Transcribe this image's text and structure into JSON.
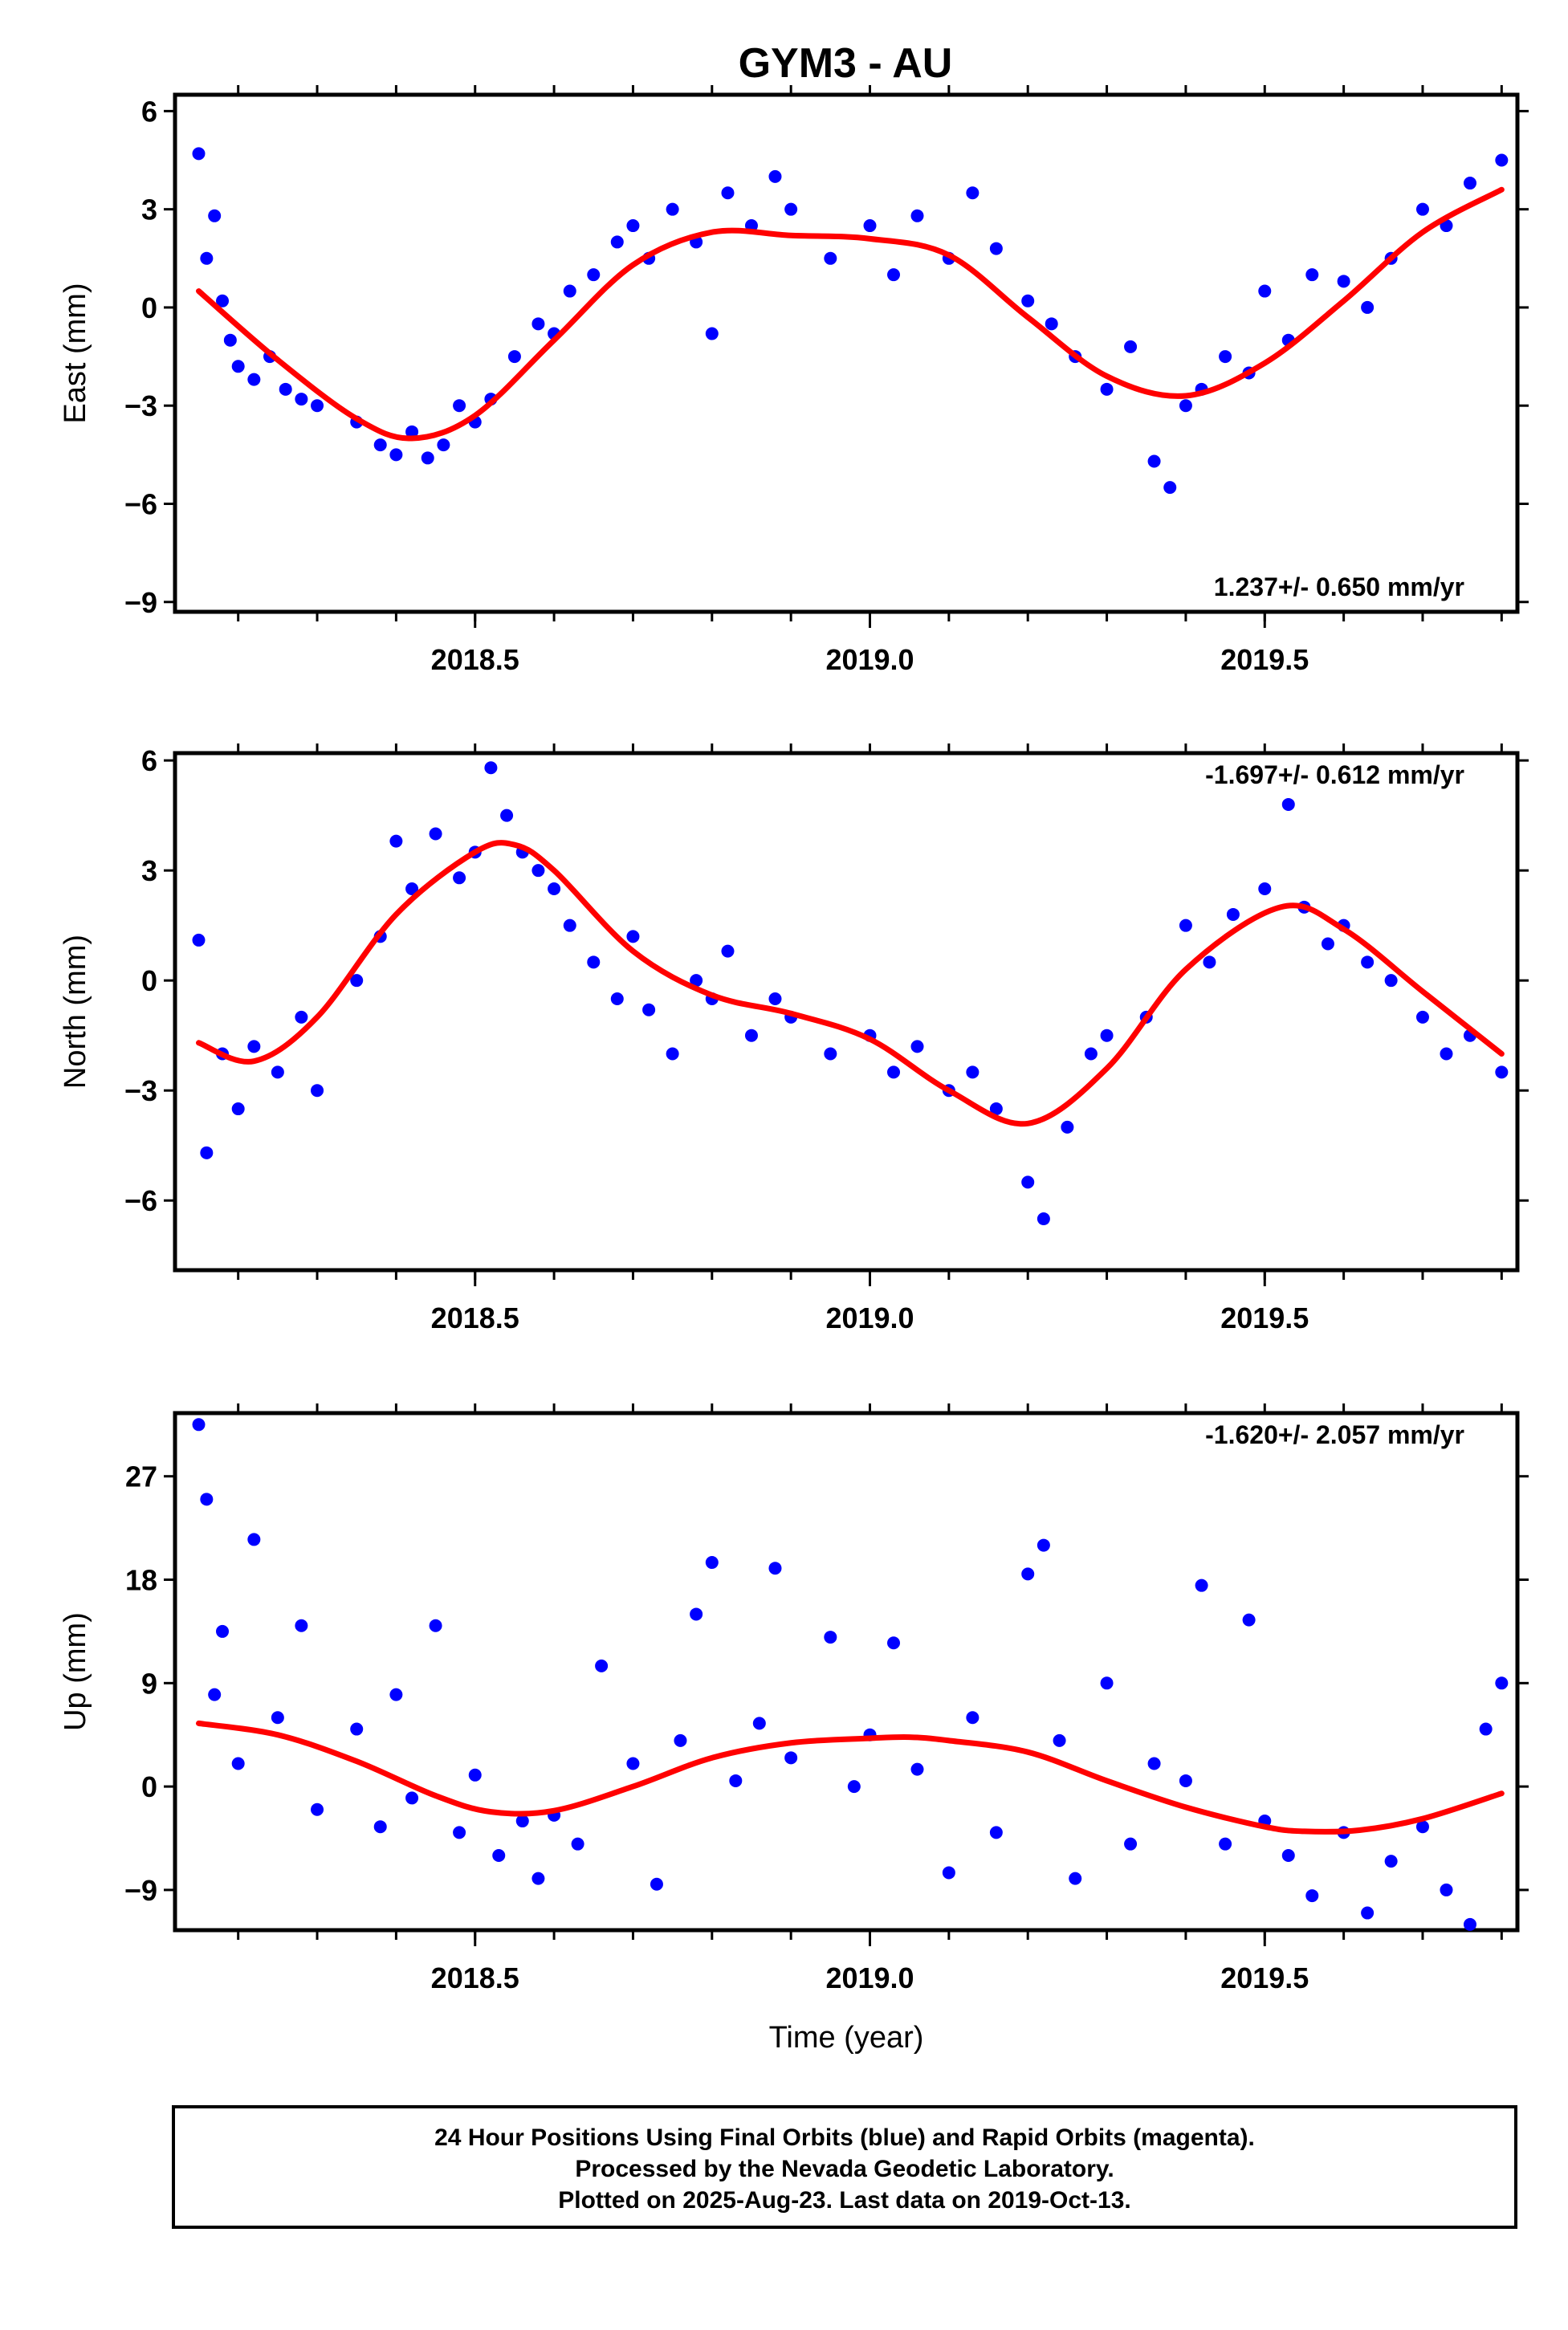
{
  "page": {
    "title": "GYM3 - AU"
  },
  "footer": {
    "line1": "24 Hour Positions Using Final Orbits (blue) and Rapid Orbits (magenta).",
    "line2": "Processed by the Nevada Geodetic Laboratory.",
    "line3": "Plotted on 2025-Aug-23. Last data on 2019-Oct-13."
  },
  "colors": {
    "points": "#0000ff",
    "fit": "#ff0000",
    "frame": "#000000"
  },
  "chart_data": [
    {
      "type": "scatter",
      "name": "east",
      "title": "GYM3 - AU",
      "ylabel": "East (mm)",
      "xlabel": "",
      "xlim": [
        2018.12,
        2019.82
      ],
      "ylim": [
        -9.3,
        6.5
      ],
      "yticks": [
        -9,
        -6,
        -3,
        0,
        3,
        6
      ],
      "xticks": [
        2018.5,
        2019.0,
        2019.5
      ],
      "rate_label": "1.237+/- 0.650 mm/yr",
      "fit": {
        "x": [
          2018.15,
          2018.25,
          2018.35,
          2018.42,
          2018.5,
          2018.6,
          2018.7,
          2018.8,
          2018.9,
          2019.0,
          2019.1,
          2019.2,
          2019.3,
          2019.4,
          2019.5,
          2019.6,
          2019.7,
          2019.8
        ],
        "y": [
          0.5,
          -1.6,
          -3.4,
          -4.0,
          -3.3,
          -1.0,
          1.3,
          2.3,
          2.2,
          2.1,
          1.6,
          -0.3,
          -2.1,
          -2.7,
          -1.7,
          0.2,
          2.3,
          3.6
        ]
      },
      "points": {
        "x": [
          2018.15,
          2018.16,
          2018.17,
          2018.18,
          2018.19,
          2018.2,
          2018.22,
          2018.24,
          2018.26,
          2018.28,
          2018.3,
          2018.35,
          2018.38,
          2018.4,
          2018.42,
          2018.44,
          2018.46,
          2018.48,
          2018.5,
          2018.52,
          2018.55,
          2018.58,
          2018.6,
          2018.62,
          2018.65,
          2018.68,
          2018.7,
          2018.72,
          2018.75,
          2018.78,
          2018.8,
          2018.82,
          2018.85,
          2018.88,
          2018.9,
          2018.95,
          2019.0,
          2019.03,
          2019.06,
          2019.1,
          2019.13,
          2019.16,
          2019.2,
          2019.23,
          2019.26,
          2019.3,
          2019.33,
          2019.36,
          2019.38,
          2019.4,
          2019.42,
          2019.45,
          2019.48,
          2019.5,
          2019.53,
          2019.56,
          2019.6,
          2019.63,
          2019.66,
          2019.7,
          2019.73,
          2019.76,
          2019.8
        ],
        "y": [
          4.7,
          1.5,
          2.8,
          0.2,
          -1.0,
          -1.8,
          -2.2,
          -1.5,
          -2.5,
          -2.8,
          -3.0,
          -3.5,
          -4.2,
          -4.5,
          -3.8,
          -4.6,
          -4.2,
          -3.0,
          -3.5,
          -2.8,
          -1.5,
          -0.5,
          -0.8,
          0.5,
          1.0,
          2.0,
          2.5,
          1.5,
          3.0,
          2.0,
          -0.8,
          3.5,
          2.5,
          4.0,
          3.0,
          1.5,
          2.5,
          1.0,
          2.8,
          1.5,
          3.5,
          1.8,
          0.2,
          -0.5,
          -1.5,
          -2.5,
          -1.2,
          -4.7,
          -5.5,
          -3.0,
          -2.5,
          -1.5,
          -2.0,
          0.5,
          -1.0,
          1.0,
          0.8,
          0.0,
          1.5,
          3.0,
          2.5,
          3.8,
          4.5
        ]
      }
    },
    {
      "type": "scatter",
      "name": "north",
      "ylabel": "North (mm)",
      "xlabel": "",
      "xlim": [
        2018.12,
        2019.82
      ],
      "ylim": [
        -7.9,
        6.2
      ],
      "yticks": [
        -6,
        -3,
        0,
        3,
        6
      ],
      "xticks": [
        2018.5,
        2019.0,
        2019.5
      ],
      "rate_label": "-1.697+/- 0.612 mm/yr",
      "fit": {
        "x": [
          2018.15,
          2018.22,
          2018.3,
          2018.4,
          2018.5,
          2018.55,
          2018.6,
          2018.7,
          2018.8,
          2018.9,
          2019.0,
          2019.1,
          2019.2,
          2019.3,
          2019.4,
          2019.52,
          2019.6,
          2019.7,
          2019.8
        ],
        "y": [
          -1.7,
          -2.2,
          -1.0,
          1.8,
          3.5,
          3.7,
          3.0,
          0.8,
          -0.4,
          -0.9,
          -1.6,
          -3.0,
          -3.9,
          -2.4,
          0.3,
          2.0,
          1.4,
          -0.3,
          -2.0
        ]
      },
      "points": {
        "x": [
          2018.15,
          2018.16,
          2018.18,
          2018.2,
          2018.22,
          2018.25,
          2018.28,
          2018.3,
          2018.35,
          2018.38,
          2018.4,
          2018.42,
          2018.45,
          2018.48,
          2018.5,
          2018.52,
          2018.54,
          2018.56,
          2018.58,
          2018.6,
          2018.62,
          2018.65,
          2018.68,
          2018.7,
          2018.72,
          2018.75,
          2018.78,
          2018.8,
          2018.82,
          2018.85,
          2018.88,
          2018.9,
          2018.95,
          2019.0,
          2019.03,
          2019.06,
          2019.1,
          2019.13,
          2019.16,
          2019.2,
          2019.22,
          2019.25,
          2019.28,
          2019.3,
          2019.35,
          2019.4,
          2019.43,
          2019.46,
          2019.5,
          2019.53,
          2019.55,
          2019.58,
          2019.6,
          2019.63,
          2019.66,
          2019.7,
          2019.73,
          2019.76,
          2019.8
        ],
        "y": [
          1.1,
          -4.7,
          -2.0,
          -3.5,
          -1.8,
          -2.5,
          -1.0,
          -3.0,
          0.0,
          1.2,
          3.8,
          2.5,
          4.0,
          2.8,
          3.5,
          5.8,
          4.5,
          3.5,
          3.0,
          2.5,
          1.5,
          0.5,
          -0.5,
          1.2,
          -0.8,
          -2.0,
          0.0,
          -0.5,
          0.8,
          -1.5,
          -0.5,
          -1.0,
          -2.0,
          -1.5,
          -2.5,
          -1.8,
          -3.0,
          -2.5,
          -3.5,
          -5.5,
          -6.5,
          -4.0,
          -2.0,
          -1.5,
          -1.0,
          1.5,
          0.5,
          1.8,
          2.5,
          4.8,
          2.0,
          1.0,
          1.5,
          0.5,
          0.0,
          -1.0,
          -2.0,
          -1.5,
          -2.5
        ]
      }
    },
    {
      "type": "scatter",
      "name": "up",
      "ylabel": "Up (mm)",
      "xlabel": "Time (year)",
      "xlim": [
        2018.12,
        2019.82
      ],
      "ylim": [
        -12.5,
        32.5
      ],
      "yticks": [
        -9,
        0,
        9,
        18,
        27
      ],
      "xticks": [
        2018.5,
        2019.0,
        2019.5
      ],
      "rate_label": "-1.620+/- 2.057 mm/yr",
      "fit": {
        "x": [
          2018.15,
          2018.25,
          2018.35,
          2018.45,
          2018.52,
          2018.6,
          2018.7,
          2018.8,
          2018.9,
          2019.0,
          2019.05,
          2019.1,
          2019.2,
          2019.3,
          2019.4,
          2019.5,
          2019.55,
          2019.62,
          2019.7,
          2019.8
        ],
        "y": [
          5.5,
          4.5,
          2.2,
          -0.8,
          -2.2,
          -2.1,
          0.0,
          2.5,
          3.8,
          4.2,
          4.3,
          4.0,
          3.0,
          0.5,
          -1.8,
          -3.5,
          -3.9,
          -3.8,
          -2.8,
          -0.6
        ]
      },
      "points": {
        "x": [
          2018.15,
          2018.16,
          2018.17,
          2018.18,
          2018.2,
          2018.22,
          2018.25,
          2018.28,
          2018.3,
          2018.35,
          2018.38,
          2018.4,
          2018.42,
          2018.45,
          2018.48,
          2018.5,
          2018.53,
          2018.56,
          2018.58,
          2018.6,
          2018.63,
          2018.66,
          2018.7,
          2018.73,
          2018.76,
          2018.78,
          2018.8,
          2018.83,
          2018.86,
          2018.88,
          2018.9,
          2018.95,
          2018.98,
          2019.0,
          2019.03,
          2019.06,
          2019.1,
          2019.13,
          2019.16,
          2019.2,
          2019.22,
          2019.24,
          2019.26,
          2019.3,
          2019.33,
          2019.36,
          2019.4,
          2019.42,
          2019.45,
          2019.48,
          2019.5,
          2019.53,
          2019.56,
          2019.6,
          2019.63,
          2019.66,
          2019.7,
          2019.73,
          2019.76,
          2019.78,
          2019.8
        ],
        "y": [
          31.5,
          25.0,
          8.0,
          13.5,
          2.0,
          21.5,
          6.0,
          14.0,
          -2.0,
          5.0,
          -3.5,
          8.0,
          -1.0,
          14.0,
          -4.0,
          1.0,
          -6.0,
          -3.0,
          -8.0,
          -2.5,
          -5.0,
          10.5,
          2.0,
          -8.5,
          4.0,
          15.0,
          19.5,
          0.5,
          5.5,
          19.0,
          2.5,
          13.0,
          0.0,
          4.5,
          12.5,
          1.5,
          -7.5,
          6.0,
          -4.0,
          18.5,
          21.0,
          4.0,
          -8.0,
          9.0,
          -5.0,
          2.0,
          0.5,
          17.5,
          -5.0,
          14.5,
          -3.0,
          -6.0,
          -9.5,
          -4.0,
          -11.0,
          -6.5,
          -3.5,
          -9.0,
          -12.0,
          5.0,
          9.0
        ]
      }
    }
  ]
}
